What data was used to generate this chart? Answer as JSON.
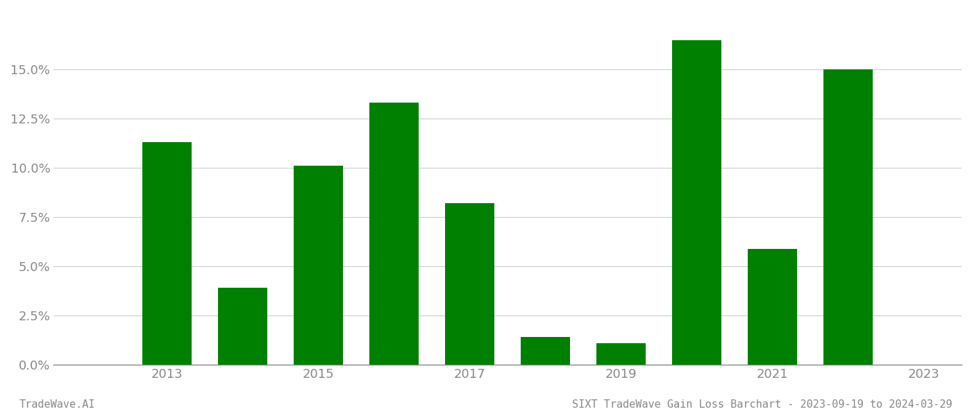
{
  "years": [
    2013,
    2014,
    2015,
    2016,
    2017,
    2018,
    2019,
    2020,
    2021,
    2022
  ],
  "values": [
    0.113,
    0.039,
    0.101,
    0.133,
    0.082,
    0.014,
    0.011,
    0.165,
    0.059,
    0.15
  ],
  "bar_color": "#008000",
  "background_color": "#ffffff",
  "grid_color": "#cccccc",
  "axis_color": "#888888",
  "tick_color": "#888888",
  "ylim": [
    0.0,
    0.18
  ],
  "yticks": [
    0.0,
    0.025,
    0.05,
    0.075,
    0.1,
    0.125,
    0.15
  ],
  "xtick_positions": [
    2013,
    2015,
    2017,
    2019,
    2021,
    2023
  ],
  "xtick_labels": [
    "2013",
    "2015",
    "2017",
    "2019",
    "2021",
    "2023"
  ],
  "xlim": [
    2011.5,
    2023.5
  ],
  "footer_left": "TradeWave.AI",
  "footer_right": "SIXT TradeWave Gain Loss Barchart - 2023-09-19 to 2024-03-29",
  "bar_width": 0.65,
  "tick_fontsize": 13,
  "footer_fontsize": 11
}
